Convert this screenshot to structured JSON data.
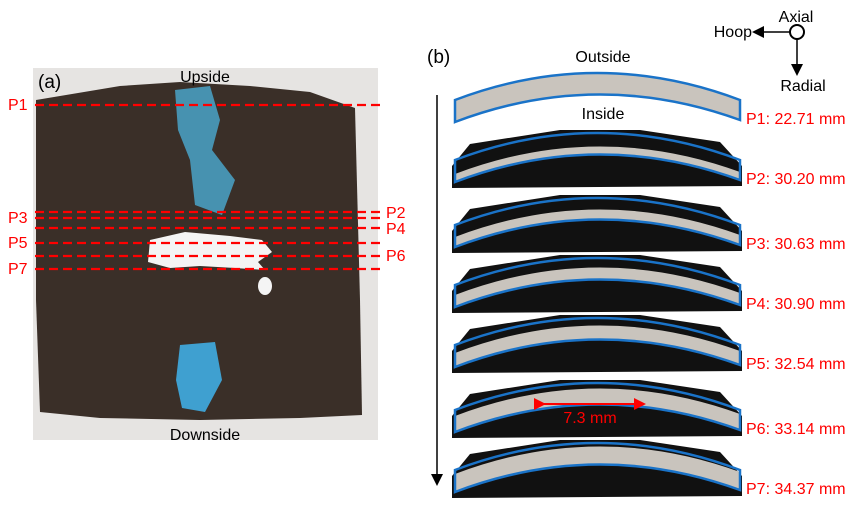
{
  "panel_a": {
    "label": "(a)",
    "top": "Upside",
    "bottom": "Downside",
    "left_markers": [
      "P1",
      "P3",
      "P5",
      "P7"
    ],
    "right_markers": [
      "P2",
      "P4",
      "P6"
    ]
  },
  "panel_b": {
    "label": "(b)",
    "outside": "Outside",
    "inside": "Inside",
    "axes": {
      "hoop": "Hoop",
      "axial": "Axial",
      "radial": "Radial"
    },
    "gap": "7.3 mm",
    "slices": [
      "P1: 22.71 mm",
      "P2: 30.20 mm",
      "P3: 30.63 mm",
      "P4: 30.90 mm",
      "P5: 32.54 mm",
      "P6: 33.14 mm",
      "P7: 34.37 mm"
    ]
  }
}
